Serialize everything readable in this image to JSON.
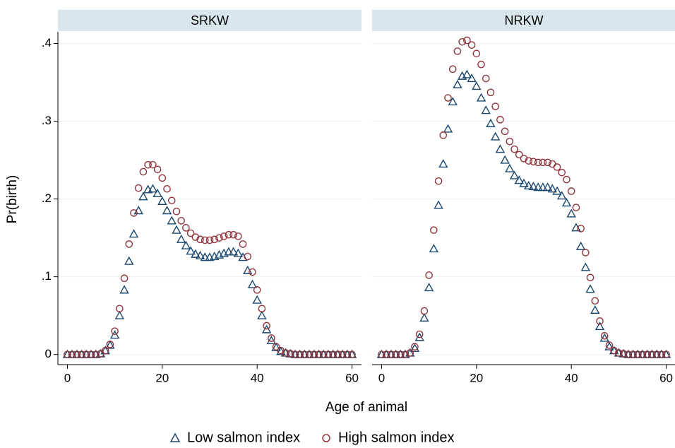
{
  "chart_data": {
    "type": "scatter",
    "x_label": "Age of animal",
    "y_label": "Pr(birth)",
    "x": [
      0,
      1,
      2,
      3,
      4,
      5,
      6,
      7,
      8,
      9,
      10,
      11,
      12,
      13,
      14,
      15,
      16,
      17,
      18,
      19,
      20,
      21,
      22,
      23,
      24,
      25,
      26,
      27,
      28,
      29,
      30,
      31,
      32,
      33,
      34,
      35,
      36,
      37,
      38,
      39,
      40,
      41,
      42,
      43,
      44,
      45,
      46,
      47,
      48,
      49,
      50,
      51,
      52,
      53,
      54,
      55,
      56,
      57,
      58,
      59,
      60
    ],
    "xlim": [
      -2,
      62
    ],
    "xticks": [
      0,
      20,
      40,
      60
    ],
    "ylim": [
      -0.013,
      0.415
    ],
    "yticks": [
      0,
      {
        "value": 0.1,
        "label": ".1"
      },
      {
        "value": 0.2,
        "label": ".2"
      },
      {
        "value": 0.3,
        "label": ".3"
      },
      {
        "value": 0.4,
        "label": ".4"
      }
    ],
    "grid": true,
    "legend": "bottom",
    "series": [
      {
        "name": "Low salmon index",
        "color": "#1a476f",
        "marker": "triangle"
      },
      {
        "name": "High salmon index",
        "color": "#90353b",
        "marker": "circle"
      }
    ],
    "panels": [
      {
        "title": "SRKW",
        "values": [
          [
            0,
            0,
            0,
            0,
            0,
            0,
            0,
            0.001,
            0.005,
            0.012,
            0.025,
            0.05,
            0.083,
            0.12,
            0.155,
            0.185,
            0.203,
            0.212,
            0.213,
            0.207,
            0.197,
            0.185,
            0.172,
            0.16,
            0.148,
            0.14,
            0.133,
            0.129,
            0.127,
            0.125,
            0.125,
            0.126,
            0.128,
            0.13,
            0.132,
            0.132,
            0.13,
            0.125,
            0.108,
            0.09,
            0.07,
            0.05,
            0.032,
            0.018,
            0.009,
            0.004,
            0.002,
            0.001,
            0,
            0,
            0,
            0,
            0,
            0,
            0,
            0,
            0,
            0,
            0,
            0,
            0
          ],
          [
            0,
            0,
            0,
            0,
            0,
            0,
            0,
            0.001,
            0.005,
            0.013,
            0.03,
            0.059,
            0.098,
            0.142,
            0.182,
            0.214,
            0.235,
            0.244,
            0.244,
            0.238,
            0.227,
            0.213,
            0.198,
            0.184,
            0.172,
            0.163,
            0.156,
            0.151,
            0.148,
            0.147,
            0.147,
            0.148,
            0.15,
            0.152,
            0.154,
            0.154,
            0.152,
            0.142,
            0.126,
            0.106,
            0.083,
            0.059,
            0.037,
            0.021,
            0.01,
            0.005,
            0.002,
            0.001,
            0,
            0,
            0,
            0,
            0,
            0,
            0,
            0,
            0,
            0,
            0,
            0,
            0
          ]
        ]
      },
      {
        "title": "NRKW",
        "values": [
          [
            0,
            0,
            0,
            0,
            0,
            0,
            0.002,
            0.008,
            0.022,
            0.047,
            0.086,
            0.136,
            0.192,
            0.245,
            0.29,
            0.325,
            0.347,
            0.358,
            0.36,
            0.355,
            0.345,
            0.33,
            0.314,
            0.297,
            0.28,
            0.264,
            0.25,
            0.239,
            0.23,
            0.224,
            0.22,
            0.217,
            0.216,
            0.215,
            0.215,
            0.215,
            0.213,
            0.21,
            0.204,
            0.195,
            0.181,
            0.163,
            0.139,
            0.112,
            0.084,
            0.057,
            0.036,
            0.021,
            0.01,
            0.005,
            0.002,
            0.001,
            0,
            0,
            0,
            0,
            0,
            0,
            0,
            0,
            0
          ],
          [
            0,
            0,
            0,
            0,
            0,
            0,
            0.002,
            0.01,
            0.026,
            0.056,
            0.102,
            0.16,
            0.223,
            0.282,
            0.33,
            0.367,
            0.39,
            0.402,
            0.404,
            0.398,
            0.387,
            0.373,
            0.355,
            0.337,
            0.319,
            0.302,
            0.287,
            0.274,
            0.264,
            0.257,
            0.252,
            0.249,
            0.248,
            0.247,
            0.247,
            0.247,
            0.245,
            0.241,
            0.234,
            0.225,
            0.21,
            0.189,
            0.162,
            0.131,
            0.099,
            0.069,
            0.043,
            0.024,
            0.012,
            0.005,
            0.002,
            0.001,
            0,
            0,
            0,
            0,
            0,
            0,
            0,
            0,
            0
          ]
        ]
      }
    ]
  }
}
